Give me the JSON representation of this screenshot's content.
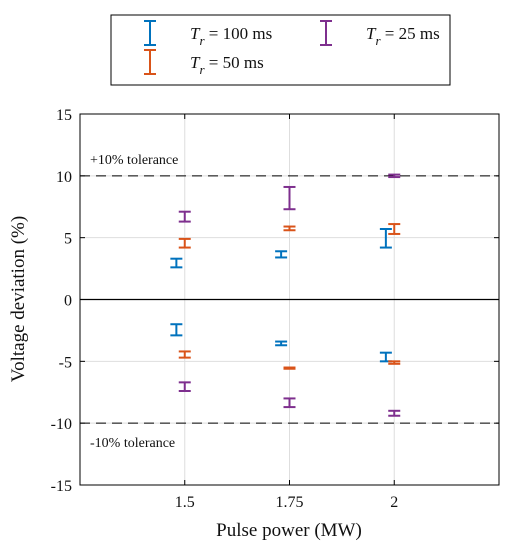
{
  "chart_data": {
    "type": "errorbar",
    "xlabel": "Pulse power (MW)",
    "ylabel": "Voltage deviation (%)",
    "xlim": [
      1.25,
      2.25
    ],
    "ylim": [
      -15,
      15
    ],
    "x_ticks": [
      1.5,
      1.75,
      2
    ],
    "x_tick_labels": [
      "1.5",
      "1.75",
      "2"
    ],
    "y_ticks": [
      15,
      10,
      5,
      0,
      -5,
      -10,
      -15
    ],
    "y_tick_labels": [
      "15",
      "10",
      "5",
      "0",
      "-5",
      "-10",
      "-15"
    ],
    "grid": true,
    "legend_position": "above plot, outside",
    "reference_lines": [
      {
        "y": 10,
        "label": "+10% tolerance",
        "style": "dashed"
      },
      {
        "y": -10,
        "label": "-10% tolerance",
        "style": "dashed"
      },
      {
        "y": 0,
        "label": "",
        "style": "solid"
      }
    ],
    "series": [
      {
        "name": "T_r = 100 ms",
        "legend_symbol": "T",
        "legend_subscript": "r",
        "legend_rest": " = 100 ms",
        "color": "#0072BD",
        "x_offset": -0.02,
        "bars": [
          {
            "x": 1.5,
            "low": 2.6,
            "high": 3.3
          },
          {
            "x": 1.75,
            "low": 3.4,
            "high": 3.9
          },
          {
            "x": 2,
            "low": 4.2,
            "high": 5.7
          },
          {
            "x": 1.5,
            "low": -2.9,
            "high": -2.0
          },
          {
            "x": 1.75,
            "low": -3.7,
            "high": -3.4
          },
          {
            "x": 2,
            "low": -5.0,
            "high": -4.3
          }
        ]
      },
      {
        "name": "T_r = 50 ms",
        "legend_symbol": "T",
        "legend_subscript": "r",
        "legend_rest": " = 50 ms",
        "color": "#D95319",
        "x_offset": 0.0,
        "bars": [
          {
            "x": 1.5,
            "low": 4.2,
            "high": 4.9
          },
          {
            "x": 1.75,
            "low": 5.6,
            "high": 5.9
          },
          {
            "x": 2,
            "low": 5.3,
            "high": 6.1
          },
          {
            "x": 1.5,
            "low": -4.7,
            "high": -4.2
          },
          {
            "x": 1.75,
            "low": -5.6,
            "high": -5.5
          },
          {
            "x": 2,
            "low": -5.2,
            "high": -5.0
          }
        ]
      },
      {
        "name": "T_r = 25 ms",
        "legend_symbol": "T",
        "legend_subscript": "r",
        "legend_rest": " = 25 ms",
        "color": "#7E2F8E",
        "x_offset": 0.0,
        "bars": [
          {
            "x": 1.5,
            "low": 6.3,
            "high": 7.1
          },
          {
            "x": 1.75,
            "low": 7.3,
            "high": 9.1
          },
          {
            "x": 2,
            "low": 9.9,
            "high": 10.1
          },
          {
            "x": 1.5,
            "low": -7.4,
            "high": -6.7
          },
          {
            "x": 1.75,
            "low": -8.7,
            "high": -8.0
          },
          {
            "x": 2,
            "low": -9.4,
            "high": -9.0
          }
        ]
      }
    ]
  }
}
